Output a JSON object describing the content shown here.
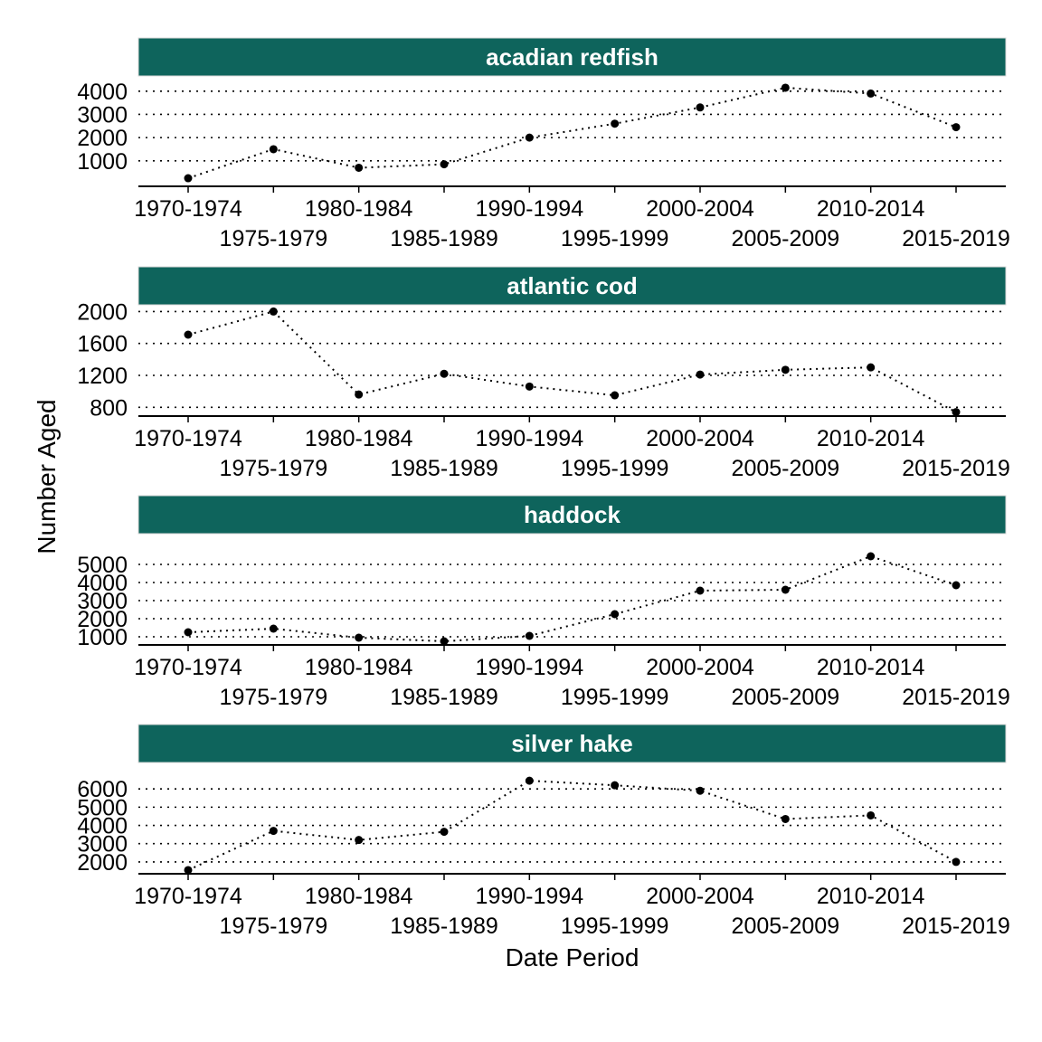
{
  "chart_data": {
    "type": "line",
    "xlabel": "Date Period",
    "ylabel": "Number Aged",
    "categories": [
      "1970-1974",
      "1975-1979",
      "1980-1984",
      "1985-1989",
      "1990-1994",
      "1995-1999",
      "2000-2004",
      "2005-2009",
      "2010-2014",
      "2015-2019"
    ],
    "grid": "horizontal dotted",
    "colors": {
      "strip": "#0e645c",
      "line": "#000000",
      "grid": "#000000"
    },
    "panels": [
      {
        "title": "acadian redfish",
        "yticks": [
          1000,
          2000,
          3000,
          4000
        ],
        "ylim": [
          -100,
          4500
        ],
        "values": [
          250,
          1500,
          700,
          850,
          2000,
          2600,
          3300,
          4150,
          3900,
          2450
        ]
      },
      {
        "title": "atlantic cod",
        "yticks": [
          800,
          1200,
          1600,
          2000
        ],
        "ylim": [
          690,
          2050
        ],
        "values": [
          1710,
          2000,
          960,
          1220,
          1060,
          950,
          1210,
          1270,
          1300,
          740
        ]
      },
      {
        "title": "haddock",
        "yticks": [
          1000,
          2000,
          3000,
          4000,
          5000
        ],
        "ylim": [
          550,
          6500
        ],
        "values": [
          1250,
          1450,
          950,
          750,
          1050,
          2250,
          3550,
          3600,
          5450,
          3850
        ]
      },
      {
        "title": "silver hake",
        "yticks": [
          2000,
          3000,
          4000,
          5000,
          6000
        ],
        "ylim": [
          1350,
          7200
        ],
        "values": [
          1550,
          3700,
          3200,
          3650,
          6450,
          6200,
          5900,
          4350,
          4550,
          2000
        ]
      }
    ]
  }
}
